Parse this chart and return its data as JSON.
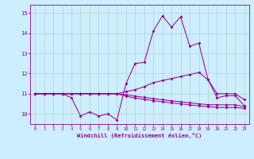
{
  "xlabel": "Windchill (Refroidissement éolien,°C)",
  "background_color": "#cceeff",
  "grid_color": "#b0ccbb",
  "line_color": "#990099",
  "xlim": [
    -0.5,
    23.5
  ],
  "ylim": [
    9.5,
    15.4
  ],
  "xticks": [
    0,
    1,
    2,
    3,
    4,
    5,
    6,
    7,
    8,
    9,
    10,
    11,
    12,
    13,
    14,
    15,
    16,
    17,
    18,
    19,
    20,
    21,
    22,
    23
  ],
  "yticks": [
    10,
    11,
    12,
    13,
    14,
    15
  ],
  "line1_x": [
    0,
    1,
    2,
    3,
    4,
    5,
    6,
    7,
    8,
    9,
    10,
    11,
    12,
    13,
    14,
    15,
    16,
    17,
    18,
    19,
    20,
    21,
    22,
    23
  ],
  "line1_y": [
    11.0,
    11.0,
    11.0,
    11.0,
    10.8,
    9.9,
    10.1,
    9.9,
    10.0,
    9.7,
    11.5,
    12.5,
    12.55,
    14.1,
    14.85,
    14.3,
    14.8,
    13.35,
    13.5,
    11.7,
    10.8,
    10.9,
    10.9,
    10.4
  ],
  "line2_x": [
    0,
    1,
    2,
    3,
    4,
    5,
    6,
    7,
    8,
    9,
    10,
    11,
    12,
    13,
    14,
    15,
    16,
    17,
    18,
    19,
    20,
    21,
    22,
    23
  ],
  "line2_y": [
    11.0,
    11.0,
    11.0,
    11.0,
    11.0,
    11.0,
    11.0,
    11.0,
    11.0,
    11.0,
    11.1,
    11.2,
    11.35,
    11.55,
    11.65,
    11.75,
    11.85,
    11.95,
    12.05,
    11.7,
    11.0,
    11.0,
    11.0,
    10.7
  ],
  "line3_x": [
    0,
    1,
    2,
    3,
    4,
    5,
    6,
    7,
    8,
    9,
    10,
    11,
    12,
    13,
    14,
    15,
    16,
    17,
    18,
    19,
    20,
    21,
    22,
    23
  ],
  "line3_y": [
    11.0,
    11.0,
    11.0,
    11.0,
    11.0,
    11.0,
    11.0,
    11.0,
    11.0,
    11.0,
    10.95,
    10.88,
    10.82,
    10.76,
    10.7,
    10.65,
    10.6,
    10.55,
    10.5,
    10.46,
    10.45,
    10.45,
    10.45,
    10.36
  ],
  "line4_x": [
    0,
    1,
    2,
    3,
    4,
    5,
    6,
    7,
    8,
    9,
    10,
    11,
    12,
    13,
    14,
    15,
    16,
    17,
    18,
    19,
    20,
    21,
    22,
    23
  ],
  "line4_y": [
    11.0,
    11.0,
    11.0,
    11.0,
    11.0,
    11.0,
    11.0,
    11.0,
    11.0,
    11.0,
    10.88,
    10.78,
    10.72,
    10.66,
    10.6,
    10.55,
    10.5,
    10.45,
    10.4,
    10.36,
    10.32,
    10.32,
    10.32,
    10.28
  ]
}
